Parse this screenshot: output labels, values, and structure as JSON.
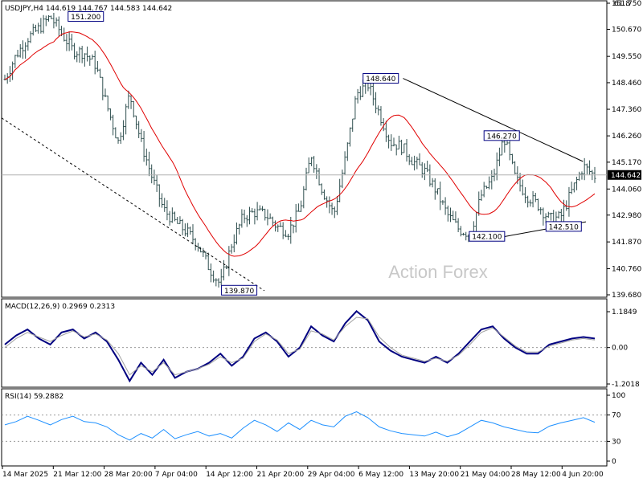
{
  "chart_data": [
    {
      "type": "bar",
      "title": "USDJPY,H4  144.619 144.767 144.583 144.642",
      "price_axis_ticks": [
        "151.750",
        "150.670",
        "149.550",
        "148.460",
        "147.360",
        "146.260",
        "145.170",
        "144.060",
        "142.980",
        "141.870",
        "140.760",
        "139.680"
      ],
      "price_axis_top_partial": "61.8",
      "y_range": [
        139.68,
        151.75
      ],
      "current_price_label": "144.642",
      "current_price": 144.642,
      "moving_average": "red",
      "annotations": [
        {
          "text": "151.200",
          "value": 151.2
        },
        {
          "text": "148.640",
          "value": 148.64
        },
        {
          "text": "146.270",
          "value": 146.27
        },
        {
          "text": "142.100",
          "value": 142.1
        },
        {
          "text": "142.510",
          "value": 142.51
        },
        {
          "text": "139.870",
          "value": 139.87
        }
      ],
      "trendlines": [
        "descending resistance 148.640 to 146.270",
        "dashed decline from 151.200 to 139.870",
        "support 142.100 to 142.510"
      ],
      "watermark": "Action Forex",
      "closes_outline": [
        148.6,
        149.6,
        150.3,
        150.7,
        151.2,
        150.5,
        149.8,
        149.7,
        149.2,
        147.5,
        146.0,
        148.0,
        146.0,
        144.5,
        143.2,
        142.7,
        142.3,
        141.8,
        140.8,
        140.1,
        141.8,
        142.9,
        143.1,
        143.0,
        142.5,
        142.3,
        143.2,
        145.5,
        144.0,
        143.0,
        145.3,
        148.0,
        148.4,
        147.2,
        146.0,
        145.8,
        145.2,
        144.8,
        144.0,
        143.0,
        142.4,
        142.2,
        143.8,
        144.5,
        146.2,
        144.5,
        143.8,
        143.4,
        142.8,
        142.9,
        144.0,
        145.0,
        144.6
      ]
    },
    {
      "type": "line",
      "title": "MACD(12,26,9) 0.2969 0.2313",
      "yticks": [
        "1.1849",
        "0.00",
        "-1.2018"
      ],
      "y_range": [
        -1.2018,
        1.1849
      ],
      "series": [
        {
          "name": "MACD",
          "color": "#000080",
          "values": [
            0.1,
            0.4,
            0.6,
            0.3,
            0.1,
            0.5,
            0.6,
            0.3,
            0.5,
            0.2,
            -0.4,
            -1.1,
            -0.5,
            -0.9,
            -0.4,
            -1.0,
            -0.8,
            -0.7,
            -0.5,
            -0.2,
            -0.6,
            -0.3,
            0.3,
            0.5,
            0.2,
            -0.3,
            0.0,
            0.7,
            0.4,
            0.2,
            0.8,
            1.2,
            0.9,
            0.2,
            -0.1,
            -0.3,
            -0.4,
            -0.5,
            -0.3,
            -0.5,
            -0.2,
            0.2,
            0.6,
            0.7,
            0.3,
            0.0,
            -0.2,
            -0.2,
            0.1,
            0.2,
            0.3,
            0.35,
            0.3
          ]
        },
        {
          "name": "Signal",
          "color": "#a0a0a0",
          "values": [
            0.0,
            0.3,
            0.5,
            0.35,
            0.2,
            0.4,
            0.55,
            0.35,
            0.45,
            0.25,
            -0.2,
            -0.9,
            -0.6,
            -0.8,
            -0.5,
            -0.9,
            -0.8,
            -0.7,
            -0.55,
            -0.3,
            -0.5,
            -0.35,
            0.2,
            0.45,
            0.25,
            -0.2,
            -0.05,
            0.55,
            0.45,
            0.25,
            0.7,
            1.0,
            0.95,
            0.35,
            0.0,
            -0.25,
            -0.35,
            -0.45,
            -0.35,
            -0.45,
            -0.25,
            0.1,
            0.5,
            0.65,
            0.35,
            0.05,
            -0.15,
            -0.15,
            0.05,
            0.15,
            0.25,
            0.3,
            0.25
          ]
        }
      ]
    },
    {
      "type": "line",
      "title": "RSI(14) 59.2882",
      "yticks": [
        "100",
        "70",
        "30",
        "0"
      ],
      "y_range": [
        0,
        100
      ],
      "series": [
        {
          "name": "RSI",
          "color": "#1e90ff",
          "values": [
            55,
            60,
            68,
            62,
            55,
            63,
            68,
            60,
            58,
            52,
            40,
            32,
            42,
            35,
            48,
            34,
            40,
            45,
            38,
            42,
            35,
            50,
            62,
            55,
            45,
            58,
            48,
            62,
            55,
            52,
            68,
            75,
            66,
            52,
            46,
            42,
            40,
            38,
            44,
            37,
            42,
            52,
            62,
            58,
            52,
            48,
            44,
            43,
            53,
            58,
            62,
            66,
            59
          ]
        }
      ]
    }
  ],
  "x_axis": {
    "labels": [
      "14 Mar 2025",
      "21 Mar 12:00",
      "28 Mar 20:00",
      "7 Apr 04:00",
      "14 Apr 12:00",
      "21 Apr 20:00",
      "29 Apr 04:00",
      "6 May 12:00",
      "13 May 20:00",
      "21 May 04:00",
      "28 May 12:00",
      "4 Jun 20:00"
    ]
  }
}
